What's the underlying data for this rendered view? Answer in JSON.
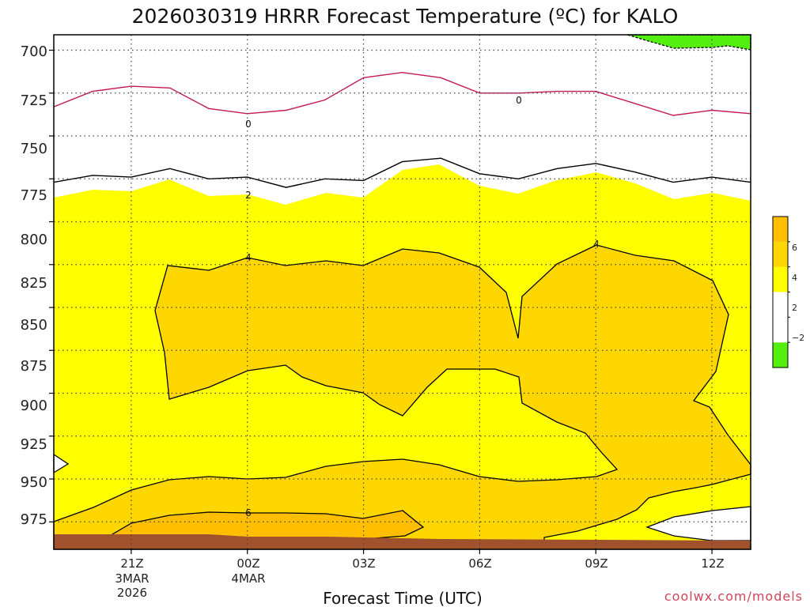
{
  "chart_data": {
    "type": "heatmap",
    "title": "2026030319 HRRR Forecast Temperature (ºC) for KALO",
    "xlabel": "Forecast Time (UTC)",
    "ylabel": "",
    "x_range_hours": [
      -2,
      16
    ],
    "y_range_hpa": [
      991,
      691
    ],
    "y_ticks": [
      "700",
      "725",
      "750",
      "775",
      "800",
      "825",
      "850",
      "875",
      "900",
      "925",
      "950",
      "975"
    ],
    "x_ticks": [
      {
        "hour": 0,
        "lines": [
          "21Z",
          "3MAR",
          "2026"
        ]
      },
      {
        "hour": 3,
        "lines": [
          "00Z",
          "4MAR"
        ]
      },
      {
        "hour": 6,
        "lines": [
          "03Z"
        ]
      },
      {
        "hour": 9,
        "lines": [
          "06Z"
        ]
      },
      {
        "hour": 12,
        "lines": [
          "09Z"
        ]
      },
      {
        "hour": 15,
        "lines": [
          "12Z"
        ]
      }
    ],
    "contour_labels": [
      "0",
      "0",
      "2",
      "4",
      "4",
      "6"
    ],
    "contours": [
      {
        "level": 0,
        "points": [
          [
            -2,
            733
          ],
          [
            -1,
            724
          ],
          [
            0,
            721
          ],
          [
            1,
            722
          ],
          [
            2,
            734
          ],
          [
            3,
            737
          ],
          [
            4,
            735
          ],
          [
            5,
            729
          ],
          [
            6,
            716
          ],
          [
            7,
            713
          ],
          [
            8,
            716
          ],
          [
            9,
            725
          ],
          [
            10,
            725
          ],
          [
            11,
            724
          ],
          [
            12,
            724
          ],
          [
            13,
            731
          ],
          [
            14,
            738
          ],
          [
            15,
            735
          ],
          [
            16,
            737
          ]
        ]
      },
      {
        "level": 2,
        "points": [
          [
            -2,
            777
          ],
          [
            -1,
            773
          ],
          [
            0,
            774
          ],
          [
            1,
            769
          ],
          [
            2,
            775
          ],
          [
            3,
            774
          ],
          [
            4,
            780
          ],
          [
            5,
            775
          ],
          [
            6,
            776
          ],
          [
            7,
            765
          ],
          [
            8,
            763
          ],
          [
            9,
            772
          ],
          [
            10,
            775
          ],
          [
            11,
            769
          ],
          [
            12,
            766
          ],
          [
            13,
            771
          ],
          [
            14,
            777
          ],
          [
            15,
            774
          ],
          [
            16,
            777
          ]
        ]
      }
    ],
    "legend": {
      "placement": "right",
      "bins": [
        {
          "min": -4,
          "max": -2,
          "color": "#55ee11"
        },
        {
          "min": -2,
          "max": 0,
          "color": "#ffffff"
        },
        {
          "min": 0,
          "max": 2,
          "color": "#ffffff"
        },
        {
          "min": 2,
          "max": 4,
          "color": "#ffff00"
        },
        {
          "min": 4,
          "max": 6,
          "color": "#ffd700"
        },
        {
          "min": 6,
          "max": 8,
          "color": "#ffbf00"
        }
      ],
      "tick_labels": [
        "6",
        "4",
        "2",
        "−2"
      ]
    },
    "terrain_color": "#a0522d"
  },
  "credit": "coolwx.com/models"
}
